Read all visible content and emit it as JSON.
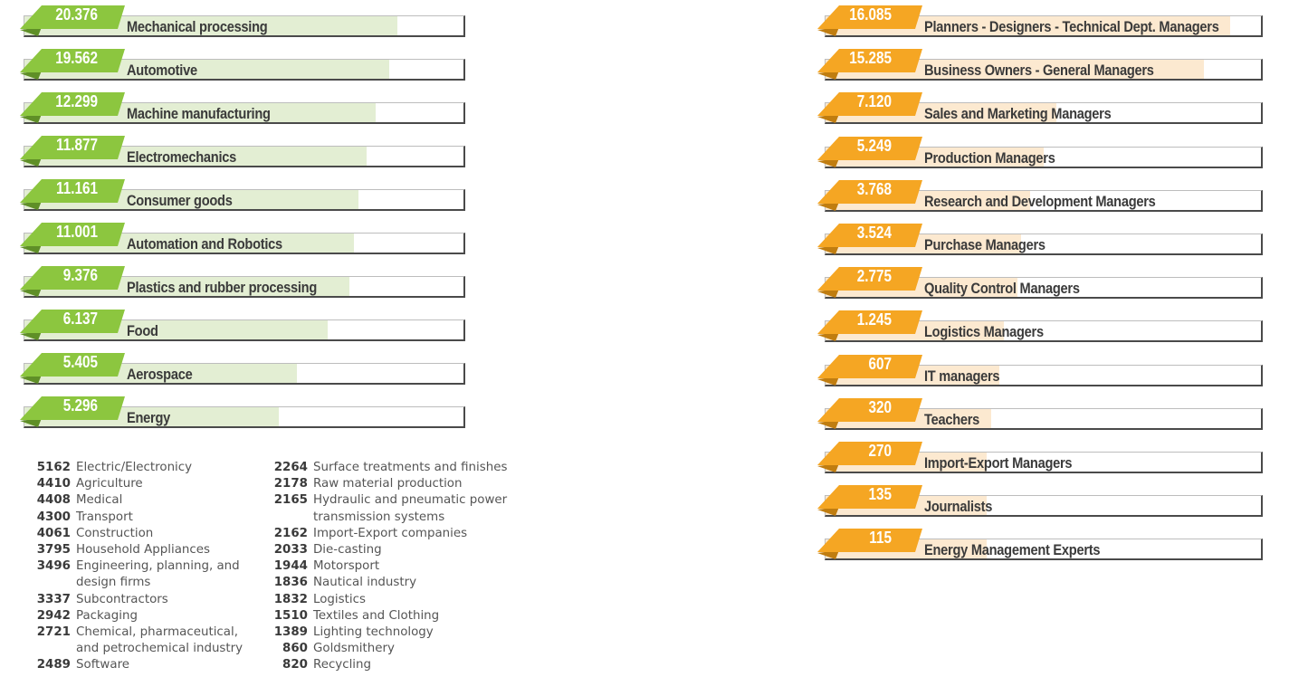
{
  "chart_data": [
    {
      "type": "bar",
      "orientation": "horizontal",
      "categories": [
        "Mechanical processing",
        "Automotive",
        "Machine manufacturing",
        "Electromechanics",
        "Consumer goods",
        "Automation and Robotics",
        "Plastics and rubber processing",
        "Food",
        "Aerospace",
        "Energy"
      ],
      "values": [
        20376,
        19562,
        12299,
        11877,
        11161,
        11001,
        9376,
        6137,
        5405,
        5296
      ],
      "value_labels": [
        "20.376",
        "19.562",
        "12.299",
        "11.877",
        "11.161",
        "11.001",
        "9.376",
        "6.137",
        "5.405",
        "5.296"
      ],
      "fill_fractions": [
        0.85,
        0.83,
        0.8,
        0.78,
        0.76,
        0.75,
        0.74,
        0.69,
        0.62,
        0.58
      ],
      "colors": {
        "tag": "#8cc63f",
        "tag_dark": "#5f8f27",
        "fill": "#e3eed3"
      }
    },
    {
      "type": "bar",
      "orientation": "horizontal",
      "categories": [
        "Planners - Designers - Technical Dept. Managers",
        "Business Owners - General Managers",
        "Sales and Marketing Managers",
        "Production Managers",
        "Research and Development Managers",
        "Purchase Managers",
        "Quality Control Managers",
        "Logistics Managers",
        "IT managers",
        "Teachers",
        "Import-Export Managers",
        "Journalists",
        "Energy Management Experts"
      ],
      "values": [
        16085,
        15285,
        7120,
        5249,
        3768,
        3524,
        2775,
        1245,
        607,
        320,
        270,
        135,
        115
      ],
      "value_labels": [
        "16.085",
        "15.285",
        "7.120",
        "5.249",
        "3.768",
        "3.524",
        "2.775",
        "1.245",
        "607",
        "320",
        "270",
        "135",
        "115"
      ],
      "fill_fractions": [
        0.93,
        0.87,
        0.53,
        0.5,
        0.47,
        0.45,
        0.44,
        0.41,
        0.4,
        0.38,
        0.37,
        0.37,
        0.37
      ],
      "colors": {
        "tag": "#f5a623",
        "tag_dark": "#c07d10",
        "fill": "#fce9d0"
      }
    }
  ],
  "legend_left": [
    {
      "n": "5162",
      "t": "Electric/Electronicy"
    },
    {
      "n": "4410",
      "t": "Agriculture"
    },
    {
      "n": "4408",
      "t": "Medical"
    },
    {
      "n": "4300",
      "t": "Transport"
    },
    {
      "n": "4061",
      "t": "Construction"
    },
    {
      "n": "3795",
      "t": "Household Appliances"
    },
    {
      "n": "3496",
      "t": "Engineering, planning, and\ndesign firms"
    },
    {
      "n": "3337",
      "t": "Subcontractors"
    },
    {
      "n": "2942",
      "t": "Packaging"
    },
    {
      "n": "2721",
      "t": "Chemical, pharmaceutical,\nand petrochemical industry"
    },
    {
      "n": "2489",
      "t": "Software"
    }
  ],
  "legend_right": [
    {
      "n": "2264",
      "t": "Surface treatments and finishes"
    },
    {
      "n": "2178",
      "t": "Raw material production"
    },
    {
      "n": "2165",
      "t": "Hydraulic and pneumatic power\ntransmission systems"
    },
    {
      "n": "2162",
      "t": "Import-Export companies"
    },
    {
      "n": "2033",
      "t": "Die-casting"
    },
    {
      "n": "1944",
      "t": "Motorsport"
    },
    {
      "n": "1836",
      "t": "Nautical industry"
    },
    {
      "n": "1832",
      "t": "Logistics"
    },
    {
      "n": "1510",
      "t": "Textiles and Clothing"
    },
    {
      "n": "1389",
      "t": "Lighting technology"
    },
    {
      "n": "860",
      "t": "Goldsmithery"
    },
    {
      "n": "820",
      "t": "Recycling"
    }
  ]
}
